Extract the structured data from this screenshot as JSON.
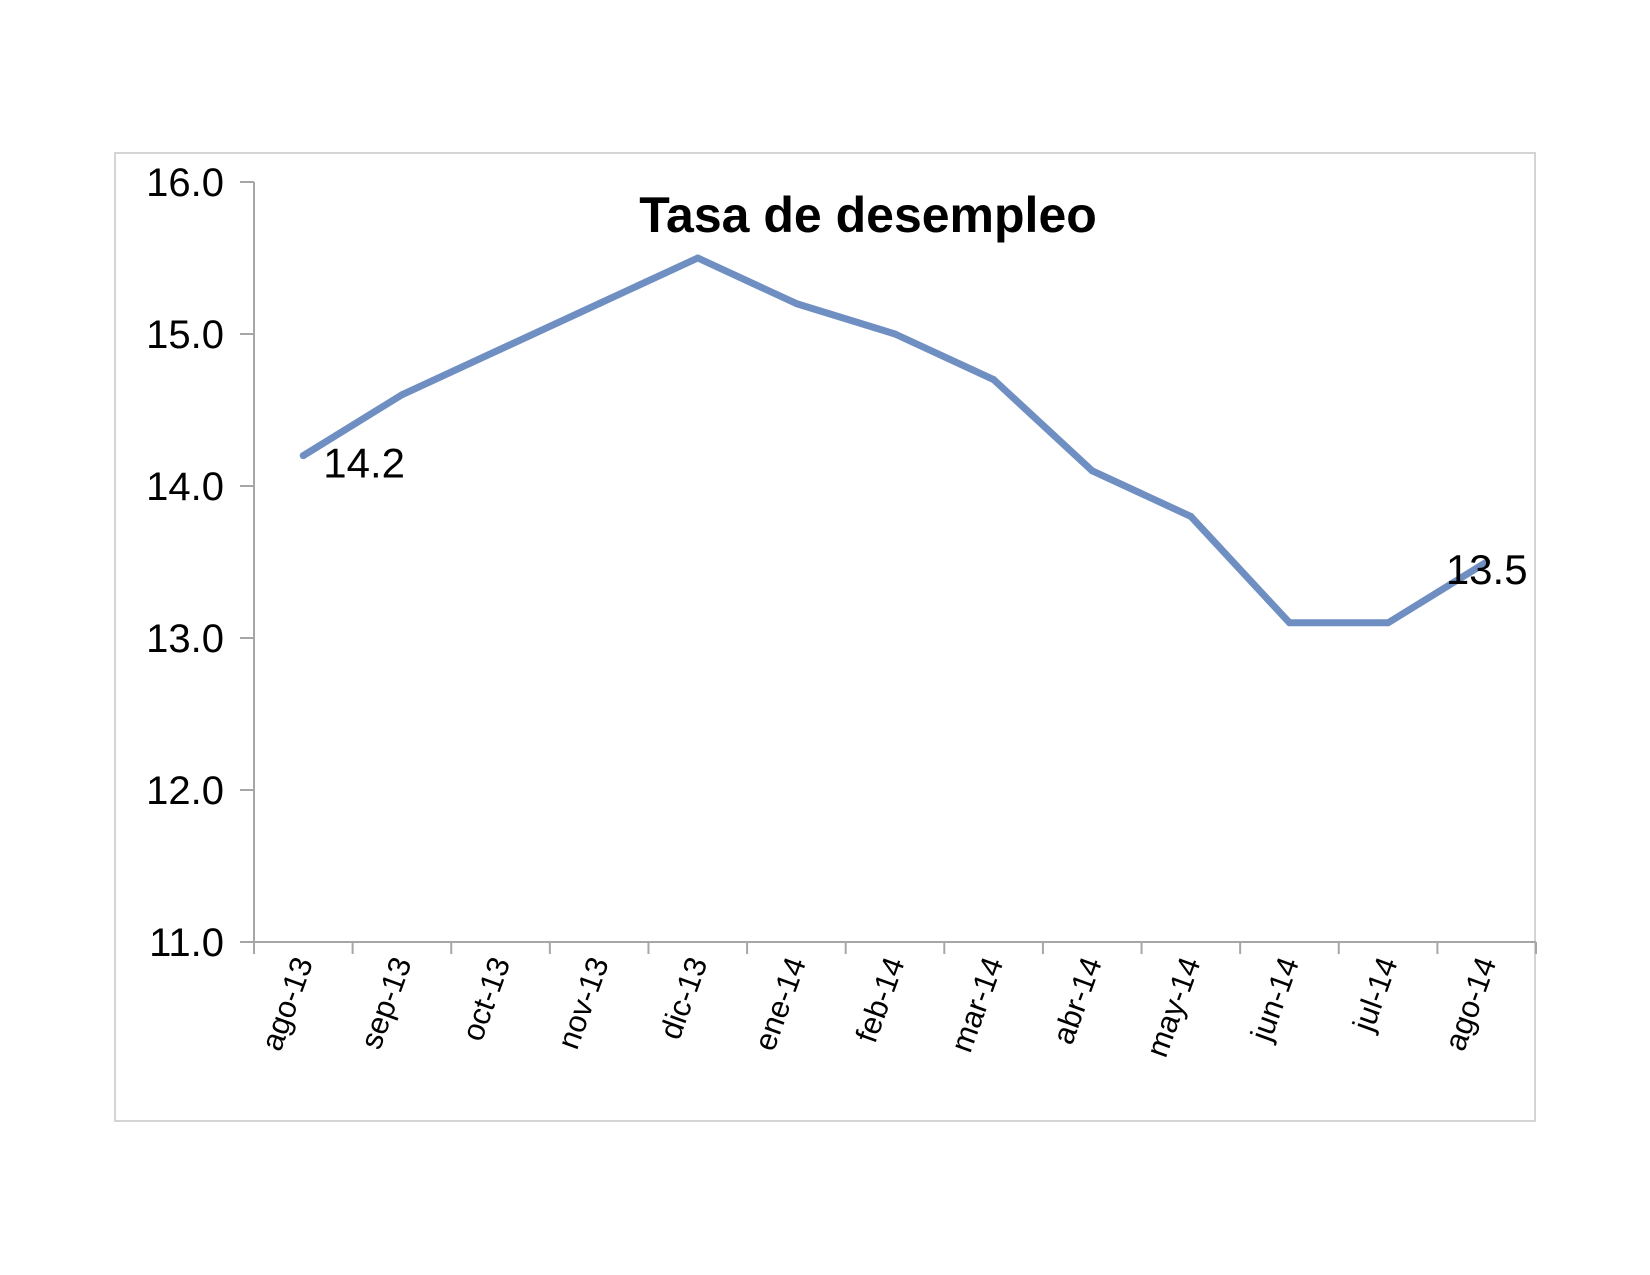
{
  "chart_data": {
    "type": "line",
    "title": "Tasa de desempleo",
    "xlabel": "",
    "ylabel": "",
    "categories": [
      "ago-13",
      "sep-13",
      "oct-13",
      "nov-13",
      "dic-13",
      "ene-14",
      "feb-14",
      "mar-14",
      "abr-14",
      "may-14",
      "jun-14",
      "jul-14",
      "ago-14"
    ],
    "series": [
      {
        "values": [
          14.2,
          14.6,
          14.9,
          15.2,
          15.5,
          15.2,
          15.0,
          14.7,
          14.1,
          13.8,
          13.1,
          13.1,
          13.5
        ]
      }
    ],
    "y_ticks": [
      "11.0",
      "12.0",
      "13.0",
      "14.0",
      "15.0",
      "16.0"
    ],
    "ylim": [
      11.0,
      16.0
    ],
    "data_labels": [
      {
        "index": 0,
        "text": "14.2"
      },
      {
        "index": 12,
        "text": "13.5"
      }
    ],
    "grid": false,
    "legend": "none",
    "line_color": "#6f8fc3",
    "axis_color": "#a6a6a6"
  }
}
